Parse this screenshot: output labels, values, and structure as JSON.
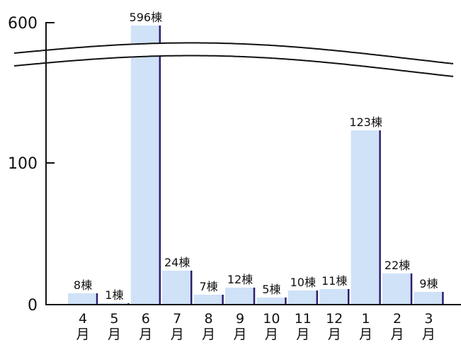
{
  "chart_data": {
    "type": "bar",
    "axis_break": true,
    "categories": [
      "4\n月",
      "5\n月",
      "6\n月",
      "7\n月",
      "8\n月",
      "9\n月",
      "10\n月",
      "11\n月",
      "12\n月",
      "1\n月",
      "2\n月",
      "3\n月"
    ],
    "values": [
      8,
      1,
      596,
      24,
      7,
      12,
      5,
      10,
      11,
      123,
      22,
      9
    ],
    "data_labels": [
      "8棟",
      "1棟",
      "596棟",
      "24棟",
      "7棟",
      "12棟",
      "5棟",
      "10棟",
      "11棟",
      "123棟",
      "22棟",
      "9棟"
    ],
    "y_tick_labels": [
      "0",
      "100",
      "600"
    ],
    "grid": false,
    "colors": {
      "bar_fill": "#cfe2f7",
      "bar_edge": "#2e1f6e",
      "axis": "#111111"
    }
  }
}
